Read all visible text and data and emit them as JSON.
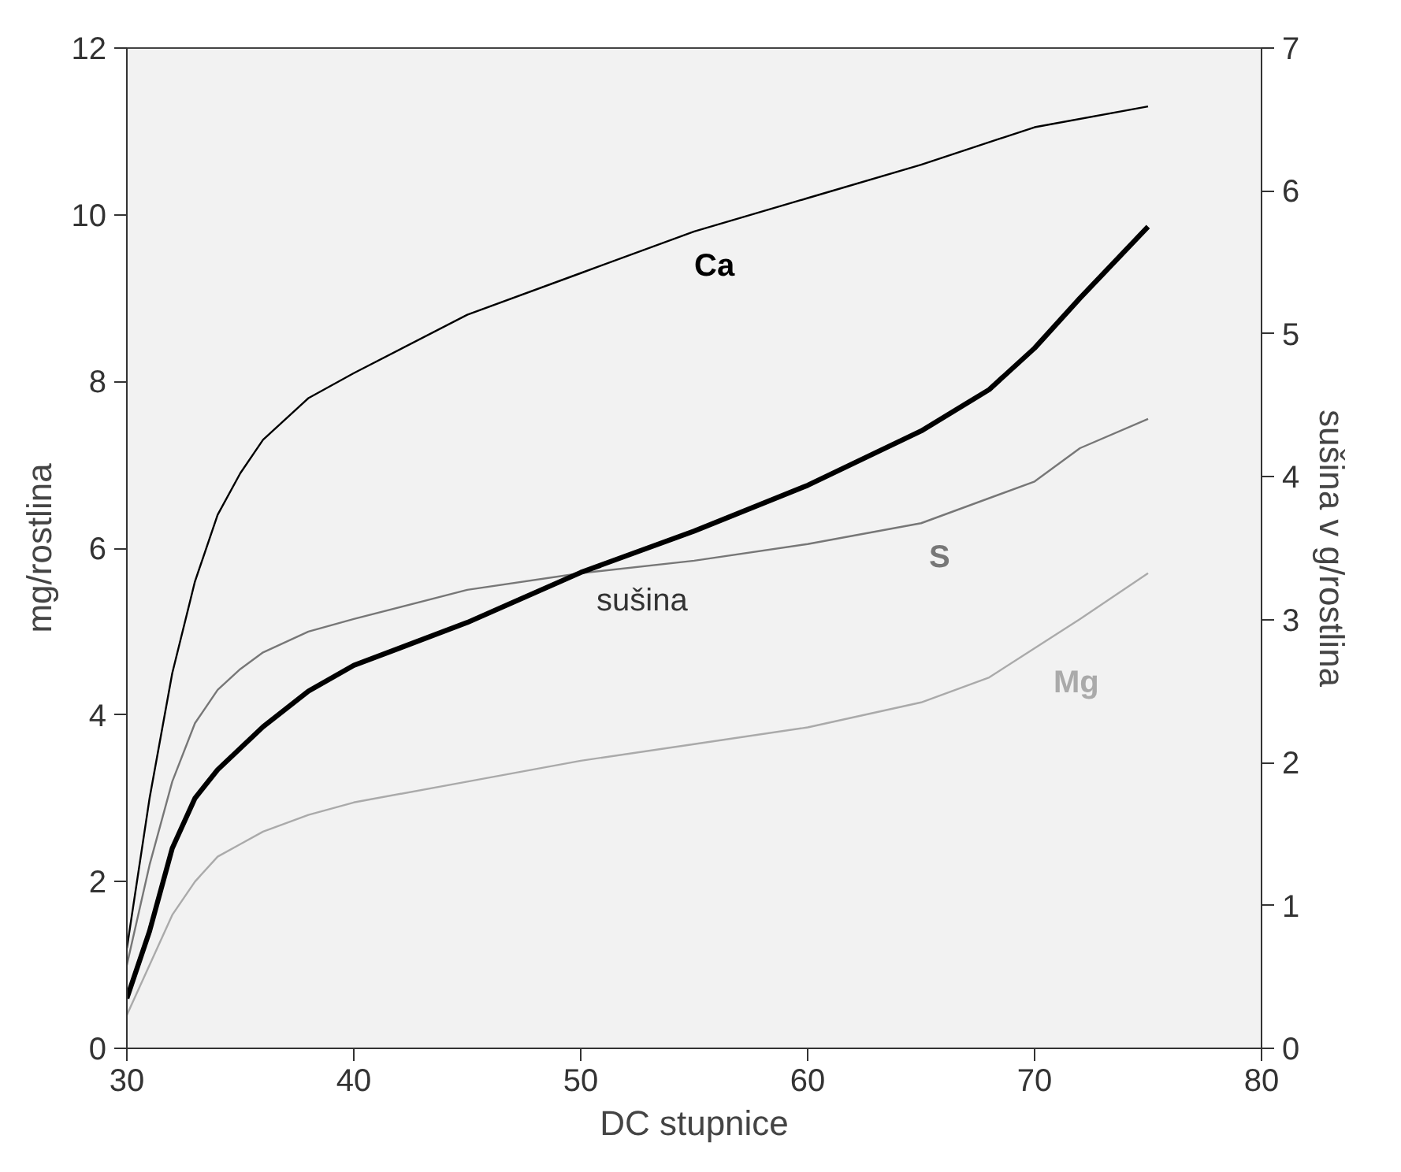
{
  "chart_data": {
    "type": "line",
    "xlabel": "DC stupnice",
    "ylabel": "mg/rostlina",
    "y2label": "sušina v g/rostlina",
    "xlim": [
      30,
      80
    ],
    "xticks": [
      30,
      40,
      50,
      60,
      70,
      80
    ],
    "ylim": [
      0,
      12
    ],
    "yticks": [
      0,
      2,
      4,
      6,
      8,
      10,
      12
    ],
    "y2lim": [
      0,
      7
    ],
    "y2ticks": [
      0,
      1,
      2,
      3,
      4,
      5,
      6,
      7
    ],
    "grid": false,
    "series": [
      {
        "name": "Ca",
        "color": "#000000",
        "x": [
          30,
          31,
          32,
          33,
          34,
          35,
          36,
          38,
          40,
          45,
          50,
          55,
          60,
          65,
          70,
          75
        ],
        "values": [
          1.2,
          3.0,
          4.5,
          5.6,
          6.4,
          6.9,
          7.3,
          7.8,
          8.1,
          8.8,
          9.3,
          9.8,
          10.2,
          10.6,
          11.05,
          11.3
        ]
      },
      {
        "name": "S",
        "color": "#777777",
        "x": [
          30,
          31,
          32,
          33,
          34,
          35,
          36,
          38,
          40,
          45,
          50,
          55,
          60,
          65,
          70,
          72,
          75
        ],
        "values": [
          1.0,
          2.2,
          3.2,
          3.9,
          4.3,
          4.55,
          4.75,
          5.0,
          5.15,
          5.5,
          5.7,
          5.85,
          6.05,
          6.3,
          6.8,
          7.2,
          7.55
        ]
      },
      {
        "name": "Mg",
        "color": "#aaaaaa",
        "x": [
          30,
          31,
          32,
          33,
          34,
          35,
          36,
          38,
          40,
          45,
          50,
          55,
          60,
          65,
          68,
          70,
          72,
          75
        ],
        "values": [
          0.4,
          1.0,
          1.6,
          2.0,
          2.3,
          2.45,
          2.6,
          2.8,
          2.95,
          3.2,
          3.45,
          3.65,
          3.85,
          4.15,
          4.45,
          4.8,
          5.15,
          5.7
        ]
      },
      {
        "name": "sušina",
        "color": "#000000",
        "axis": "y2",
        "x": [
          30,
          31,
          32,
          33,
          34,
          35,
          36,
          38,
          40,
          45,
          50,
          55,
          60,
          65,
          68,
          70,
          72,
          75
        ],
        "values": [
          0.35,
          0.82,
          1.4,
          1.75,
          1.95,
          2.1,
          2.25,
          2.5,
          2.68,
          2.98,
          3.33,
          3.62,
          3.94,
          4.32,
          4.61,
          4.9,
          5.25,
          5.75
        ]
      }
    ]
  }
}
